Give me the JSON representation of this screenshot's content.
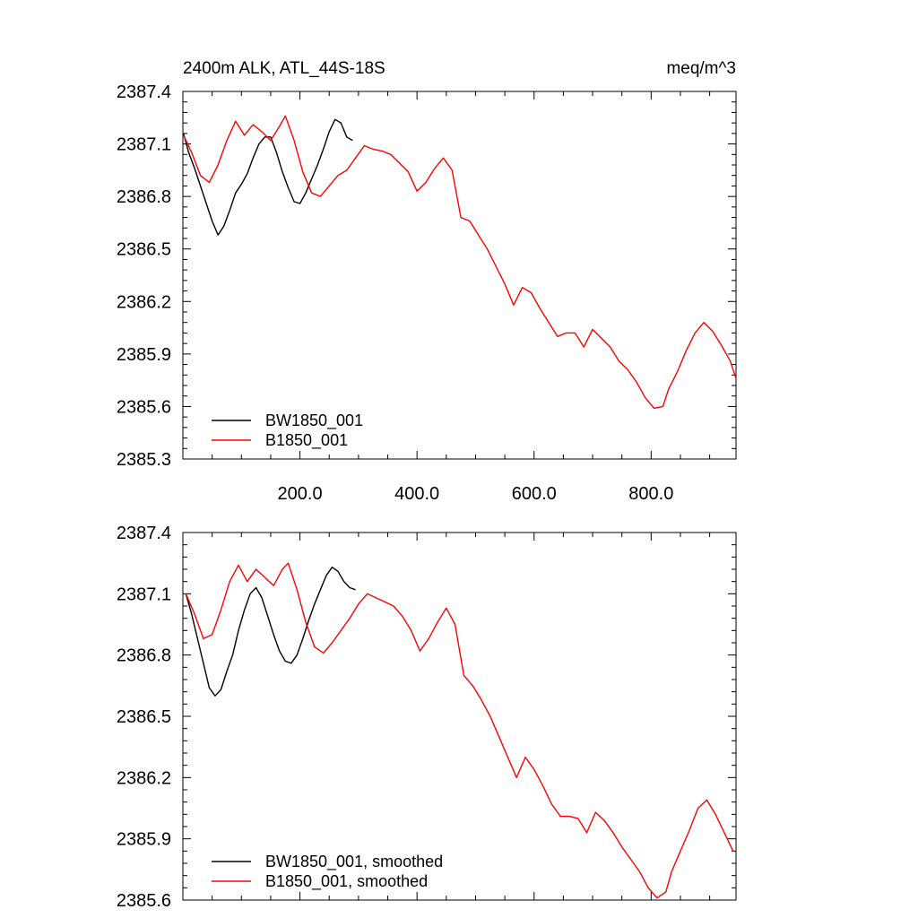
{
  "chart_data": [
    {
      "type": "line",
      "title_left": "2400m ALK, ATL_44S-18S",
      "title_right": "meq/m^3",
      "xlim": [
        0,
        945
      ],
      "ylim": [
        2385.3,
        2387.4
      ],
      "xticks": [
        200,
        400,
        600,
        800
      ],
      "xtick_labels": [
        "200.0",
        "400.0",
        "600.0",
        "800.0"
      ],
      "yticks": [
        2385.3,
        2385.6,
        2385.9,
        2386.2,
        2386.5,
        2386.8,
        2387.1,
        2387.4
      ],
      "ytick_labels": [
        "2385.3",
        "2385.6",
        "2385.9",
        "2386.2",
        "2386.5",
        "2386.8",
        "2387.1",
        "2387.4"
      ],
      "legend_position": "bottom-left",
      "series": [
        {
          "name": "BW1850_001",
          "color": "#000000",
          "x": [
            1,
            10,
            20,
            30,
            40,
            50,
            60,
            70,
            80,
            90,
            100,
            110,
            120,
            130,
            140,
            150,
            160,
            170,
            180,
            190,
            200,
            210,
            220,
            230,
            240,
            250,
            260,
            270,
            280,
            290
          ],
          "y": [
            2387.16,
            2387.05,
            2386.96,
            2386.86,
            2386.76,
            2386.66,
            2386.58,
            2386.63,
            2386.72,
            2386.82,
            2386.87,
            2386.93,
            2387.02,
            2387.1,
            2387.14,
            2387.14,
            2387.05,
            2386.94,
            2386.85,
            2386.77,
            2386.76,
            2386.82,
            2386.9,
            2386.98,
            2387.07,
            2387.17,
            2387.24,
            2387.22,
            2387.14,
            2387.12
          ]
        },
        {
          "name": "B1850_001",
          "color": "#ff0000",
          "x": [
            1,
            15,
            30,
            45,
            60,
            75,
            90,
            105,
            120,
            135,
            150,
            165,
            175,
            190,
            205,
            220,
            235,
            250,
            265,
            280,
            295,
            310,
            325,
            340,
            355,
            370,
            385,
            400,
            415,
            430,
            445,
            460,
            475,
            490,
            505,
            520,
            535,
            550,
            565,
            580,
            595,
            610,
            625,
            640,
            655,
            670,
            685,
            700,
            715,
            730,
            745,
            760,
            775,
            790,
            805,
            820,
            830,
            845,
            860,
            875,
            890,
            905,
            920,
            935,
            945
          ],
          "y": [
            2387.15,
            2387.05,
            2386.92,
            2386.88,
            2386.98,
            2387.12,
            2387.23,
            2387.15,
            2387.21,
            2387.17,
            2387.12,
            2387.2,
            2387.26,
            2387.12,
            2386.94,
            2386.82,
            2386.8,
            2386.86,
            2386.92,
            2386.95,
            2387.02,
            2387.09,
            2387.07,
            2387.06,
            2387.04,
            2386.99,
            2386.94,
            2386.83,
            2386.88,
            2386.96,
            2387.02,
            2386.95,
            2386.68,
            2386.66,
            2386.58,
            2386.5,
            2386.4,
            2386.3,
            2386.18,
            2386.28,
            2386.25,
            2386.16,
            2386.08,
            2386.0,
            2386.02,
            2386.02,
            2385.94,
            2386.04,
            2385.99,
            2385.94,
            2385.86,
            2385.81,
            2385.74,
            2385.65,
            2385.59,
            2385.6,
            2385.7,
            2385.8,
            2385.92,
            2386.02,
            2386.08,
            2386.03,
            2385.95,
            2385.86,
            2385.76
          ]
        }
      ]
    },
    {
      "type": "line",
      "xlim": [
        0,
        945
      ],
      "ylim": [
        2385.6,
        2387.4
      ],
      "xticks": [
        200,
        400,
        600,
        800
      ],
      "yticks": [
        2385.6,
        2385.9,
        2386.2,
        2386.5,
        2386.8,
        2387.1,
        2387.4
      ],
      "ytick_labels": [
        "2385.6",
        "2385.9",
        "2386.2",
        "2386.5",
        "2386.8",
        "2387.1",
        "2387.4"
      ],
      "legend_position": "bottom-left",
      "series": [
        {
          "name": "BW1850_001, smoothed",
          "color": "#000000",
          "x": [
            5,
            15,
            25,
            35,
            45,
            55,
            65,
            75,
            85,
            95,
            105,
            115,
            125,
            135,
            145,
            155,
            165,
            175,
            185,
            195,
            205,
            215,
            225,
            235,
            245,
            255,
            265,
            275,
            285,
            295
          ],
          "y": [
            2387.1,
            2387.0,
            2386.88,
            2386.76,
            2386.64,
            2386.6,
            2386.63,
            2386.72,
            2386.8,
            2386.92,
            2387.02,
            2387.1,
            2387.13,
            2387.08,
            2386.99,
            2386.9,
            2386.82,
            2386.77,
            2386.76,
            2386.8,
            2386.88,
            2386.97,
            2387.05,
            2387.12,
            2387.19,
            2387.23,
            2387.21,
            2387.16,
            2387.13,
            2387.12
          ]
        },
        {
          "name": "B1850_001, smoothed",
          "color": "#ff0000",
          "x": [
            5,
            20,
            35,
            50,
            65,
            80,
            95,
            110,
            125,
            140,
            155,
            170,
            180,
            195,
            210,
            225,
            240,
            255,
            270,
            285,
            300,
            315,
            330,
            345,
            360,
            375,
            390,
            405,
            420,
            435,
            450,
            465,
            480,
            495,
            510,
            525,
            540,
            555,
            570,
            585,
            600,
            615,
            630,
            645,
            660,
            675,
            690,
            705,
            720,
            735,
            750,
            765,
            780,
            795,
            810,
            825,
            835,
            850,
            865,
            880,
            895,
            910,
            925,
            940
          ],
          "y": [
            2387.1,
            2387.0,
            2386.88,
            2386.9,
            2387.02,
            2387.16,
            2387.24,
            2387.16,
            2387.22,
            2387.18,
            2387.14,
            2387.22,
            2387.25,
            2387.12,
            2386.96,
            2386.84,
            2386.81,
            2386.86,
            2386.92,
            2386.98,
            2387.05,
            2387.1,
            2387.08,
            2387.06,
            2387.04,
            2386.99,
            2386.92,
            2386.82,
            2386.88,
            2386.96,
            2387.03,
            2386.95,
            2386.7,
            2386.65,
            2386.58,
            2386.5,
            2386.4,
            2386.3,
            2386.2,
            2386.3,
            2386.24,
            2386.16,
            2386.07,
            2386.01,
            2386.01,
            2386.0,
            2385.93,
            2386.03,
            2385.99,
            2385.93,
            2385.86,
            2385.8,
            2385.74,
            2385.66,
            2385.61,
            2385.64,
            2385.74,
            2385.84,
            2385.94,
            2386.05,
            2386.09,
            2386.02,
            2385.93,
            2385.84
          ]
        }
      ]
    }
  ]
}
